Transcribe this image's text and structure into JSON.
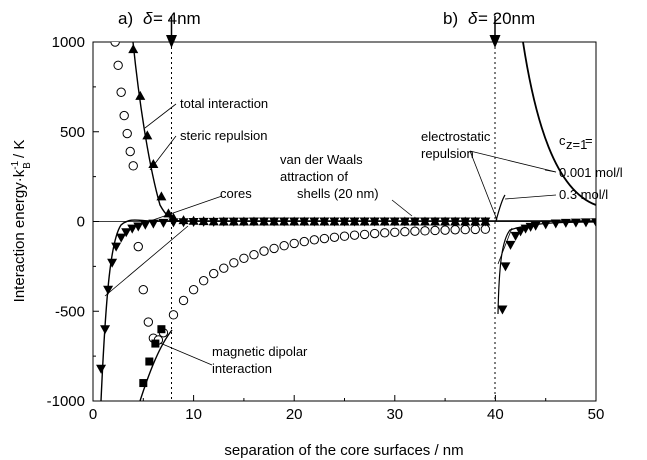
{
  "chart_data": {
    "type": "scatter",
    "xlabel": "separation of the core surfaces / nm",
    "ylabel": "Interaction energy·k",
    "ylabel_sub": "B",
    "ylabel_sup": "-1",
    "ylabel_unit": " / K",
    "xlim": [
      0,
      50
    ],
    "ylim": [
      -1000,
      1000
    ],
    "xticks": [
      0,
      10,
      20,
      30,
      40,
      50
    ],
    "yticks": [
      -1000,
      -500,
      0,
      500,
      1000
    ],
    "grid": false,
    "panels": [
      {
        "label": "a)",
        "delta": "δ",
        "value": "= 4nm",
        "x": 7.8
      },
      {
        "label": "b)",
        "delta": "δ",
        "value": "= 20nm",
        "x": 40.0
      }
    ],
    "annotations": {
      "total": "total interaction",
      "steric": "steric repulsion",
      "vdw_shells_1": "van der Waals",
      "vdw_shells_2": "attraction of",
      "vdw_shells_3": "shells (20 nm)",
      "cores": "cores",
      "magnetic_1": "magnetic dipolar",
      "magnetic_2": "interaction",
      "electro_1": "electrostatic",
      "electro_2": "repulsion",
      "conc_label": "c",
      "conc_sub": "z=1",
      "conc_eq": "=",
      "conc_1": "0.001 mol/l",
      "conc_2": "0.3 mol/l"
    },
    "series": [
      {
        "marker": "circle-open",
        "x": [
          2.2,
          2.5,
          2.8,
          3.1,
          3.4,
          3.7,
          4.0,
          4.5,
          5.0,
          5.5,
          6.0,
          6.5,
          7.0,
          8,
          9,
          10,
          11,
          12,
          13,
          14,
          15,
          16,
          17,
          18,
          19,
          20,
          21,
          22,
          23,
          24,
          25,
          26,
          27,
          28,
          29,
          30,
          31,
          32,
          33,
          34,
          35,
          36,
          37,
          38,
          39
        ],
        "y": [
          1000,
          870,
          720,
          590,
          490,
          390,
          310,
          -140,
          -380,
          -560,
          -650,
          -660,
          -620,
          -520,
          -440,
          -380,
          -330,
          -290,
          -260,
          -230,
          -205,
          -185,
          -165,
          -150,
          -135,
          -122,
          -112,
          -102,
          -95,
          -88,
          -82,
          -76,
          -72,
          -67,
          -63,
          -60,
          -57,
          -54,
          -52,
          -50,
          -48,
          -46,
          -45,
          -44,
          -43
        ]
      },
      {
        "marker": "triangle-up",
        "x": [
          4.0,
          4.7,
          5.4,
          6.0,
          6.8,
          7.5,
          8,
          9,
          10,
          11,
          12,
          13,
          14,
          15,
          16,
          17,
          18,
          19,
          20,
          21,
          22,
          23,
          24,
          25,
          26,
          27,
          28,
          29,
          30,
          31,
          32,
          33,
          34,
          35,
          36,
          37,
          38,
          39
        ],
        "y": [
          960,
          700,
          480,
          320,
          140,
          45,
          20,
          8,
          4,
          2,
          1,
          0,
          0,
          0,
          0,
          0,
          0,
          0,
          0,
          0,
          0,
          0,
          0,
          0,
          0,
          0,
          0,
          0,
          0,
          0,
          0,
          0,
          0,
          0,
          0,
          0,
          0,
          0
        ]
      },
      {
        "marker": "triangle-down",
        "x": [
          0.8,
          1.2,
          1.5,
          1.9,
          2.3,
          2.8,
          3.3,
          3.9,
          4.5,
          5.2,
          6,
          7,
          8,
          9,
          10,
          11,
          12,
          13,
          14,
          15,
          16,
          17,
          18,
          19,
          20,
          21,
          22,
          23,
          24,
          25,
          26,
          27,
          28,
          29,
          30,
          31,
          32,
          33,
          34,
          35,
          36,
          37,
          38,
          39,
          40.7,
          41,
          41.5,
          42,
          42.5,
          43,
          43.5,
          44,
          45,
          46,
          47,
          48,
          49,
          50
        ],
        "y": [
          -820,
          -600,
          -380,
          -230,
          -140,
          -90,
          -60,
          -40,
          -28,
          -18,
          -12,
          -8,
          -5,
          -4,
          -3,
          -2,
          -2,
          -1,
          -1,
          -1,
          0,
          0,
          0,
          0,
          0,
          0,
          0,
          0,
          0,
          0,
          0,
          0,
          0,
          0,
          0,
          0,
          0,
          0,
          0,
          0,
          0,
          0,
          0,
          0,
          -490,
          -250,
          -130,
          -80,
          -55,
          -40,
          -30,
          -24,
          -16,
          -11,
          -8,
          -6,
          -5,
          -4
        ]
      },
      {
        "marker": "square",
        "x": [
          5.0,
          5.6,
          6.2,
          6.8
        ],
        "y": [
          -900,
          -780,
          -680,
          -600
        ]
      }
    ]
  }
}
